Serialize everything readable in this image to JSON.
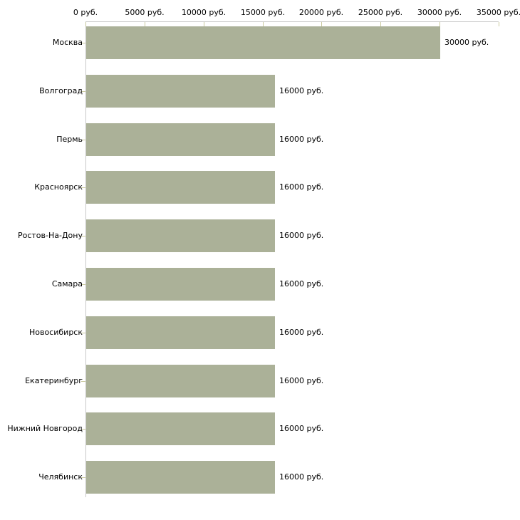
{
  "chart_data": {
    "type": "bar",
    "orientation": "horizontal",
    "title": "",
    "xlabel": "",
    "ylabel": "",
    "unit": "руб.",
    "categories": [
      "Москва",
      "Волгоград",
      "Пермь",
      "Красноярск",
      "Ростов-На-Дону",
      "Самара",
      "Новосибирск",
      "Екатеринбург",
      "Нижний Новгород",
      "Челябинск"
    ],
    "values": [
      30000,
      16000,
      16000,
      16000,
      16000,
      16000,
      16000,
      16000,
      16000,
      16000
    ],
    "value_labels": [
      "30000 руб.",
      "16000 руб.",
      "16000 руб.",
      "16000 руб.",
      "16000 руб.",
      "16000 руб.",
      "16000 руб.",
      "16000 руб.",
      "16000 руб.",
      "16000 руб."
    ],
    "x_ticks": [
      0,
      5000,
      10000,
      15000,
      20000,
      25000,
      30000,
      35000
    ],
    "x_tick_labels": [
      "0 руб.",
      "5000 руб.",
      "10000 руб.",
      "15000 руб.",
      "20000 руб.",
      "25000 руб.",
      "30000 руб.",
      "35000 руб."
    ],
    "xlim": [
      0,
      35000
    ],
    "grid": false,
    "legend": null,
    "colors": {
      "bar": "#abb198",
      "axis_line": "#c9c9c9",
      "tick_mark": "#c9c99e",
      "text": "#000000",
      "background": "#ffffff"
    }
  }
}
